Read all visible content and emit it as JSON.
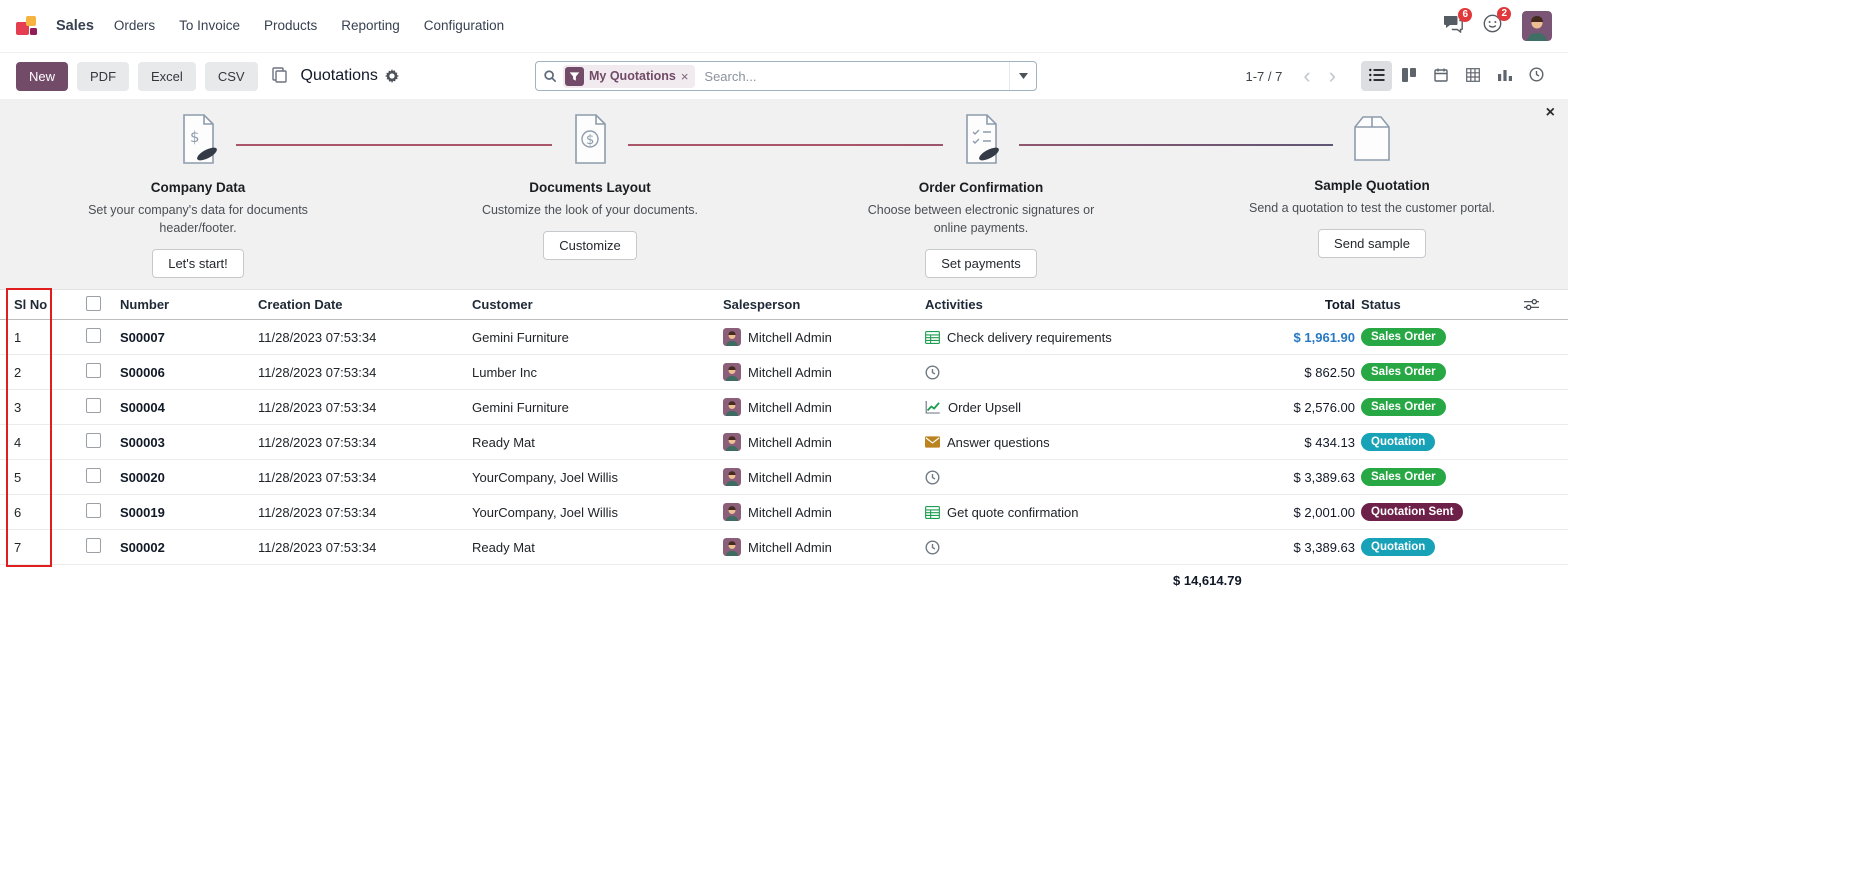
{
  "colors": {
    "accent": "#714B67",
    "status_green": "#28a745",
    "status_teal": "#17a2b8",
    "status_maroon": "#6d2048",
    "annotation_red": "#e01e1e",
    "link_blue": "#2779c4"
  },
  "nav": {
    "app": "Sales",
    "items": [
      "Orders",
      "To Invoice",
      "Products",
      "Reporting",
      "Configuration"
    ],
    "messages_badge": "6",
    "activities_badge": "2"
  },
  "control": {
    "new": "New",
    "pdf": "PDF",
    "excel": "Excel",
    "csv": "CSV",
    "title": "Quotations",
    "pager": "1-7 / 7"
  },
  "search": {
    "facet": "My Quotations",
    "facet_remove": "×",
    "placeholder": "Search..."
  },
  "onboarding": {
    "close": "×",
    "steps": [
      {
        "title": "Company Data",
        "description": "Set your company's data for documents header/footer.",
        "button": "Let's start!"
      },
      {
        "title": "Documents Layout",
        "description": "Customize the look of your documents.",
        "button": "Customize"
      },
      {
        "title": "Order Confirmation",
        "description": "Choose between electronic signatures or online payments.",
        "button": "Set payments"
      },
      {
        "title": "Sample Quotation",
        "description": "Send a quotation to test the customer portal.",
        "button": "Send sample"
      }
    ]
  },
  "table": {
    "headers": {
      "sl": "Sl No",
      "number": "Number",
      "creation_date": "Creation Date",
      "customer": "Customer",
      "salesperson": "Salesperson",
      "activities": "Activities",
      "total": "Total",
      "status": "Status"
    },
    "rows": [
      {
        "sl": "1",
        "number": "S00007",
        "creation_date": "11/28/2023 07:53:34",
        "customer": "Gemini Furniture",
        "salesperson": "Mitchell Admin",
        "activity": "Check delivery requirements",
        "activity_icon": "spreadsheet",
        "total": "$ 1,961.90",
        "total_link": true,
        "status": "Sales Order",
        "status_color": "green"
      },
      {
        "sl": "2",
        "number": "S00006",
        "creation_date": "11/28/2023 07:53:34",
        "customer": "Lumber Inc",
        "salesperson": "Mitchell Admin",
        "activity": "",
        "activity_icon": "clock",
        "total": "$ 862.50",
        "status": "Sales Order",
        "status_color": "green"
      },
      {
        "sl": "3",
        "number": "S00004",
        "creation_date": "11/28/2023 07:53:34",
        "customer": "Gemini Furniture",
        "salesperson": "Mitchell Admin",
        "activity": "Order Upsell",
        "activity_icon": "chart",
        "total": "$ 2,576.00",
        "status": "Sales Order",
        "status_color": "green"
      },
      {
        "sl": "4",
        "number": "S00003",
        "creation_date": "11/28/2023 07:53:34",
        "customer": "Ready Mat",
        "salesperson": "Mitchell Admin",
        "activity": "Answer questions",
        "activity_icon": "envelope",
        "total": "$ 434.13",
        "status": "Quotation",
        "status_color": "teal"
      },
      {
        "sl": "5",
        "number": "S00020",
        "creation_date": "11/28/2023 07:53:34",
        "customer": "YourCompany, Joel Willis",
        "salesperson": "Mitchell Admin",
        "activity": "",
        "activity_icon": "clock",
        "total": "$ 3,389.63",
        "status": "Sales Order",
        "status_color": "green"
      },
      {
        "sl": "6",
        "number": "S00019",
        "creation_date": "11/28/2023 07:53:34",
        "customer": "YourCompany, Joel Willis",
        "salesperson": "Mitchell Admin",
        "activity": "Get quote confirmation",
        "activity_icon": "spreadsheet",
        "total": "$ 2,001.00",
        "status": "Quotation Sent",
        "status_color": "maroon"
      },
      {
        "sl": "7",
        "number": "S00002",
        "creation_date": "11/28/2023 07:53:34",
        "customer": "Ready Mat",
        "salesperson": "Mitchell Admin",
        "activity": "",
        "activity_icon": "clock",
        "total": "$ 3,389.63",
        "status": "Quotation",
        "status_color": "teal"
      }
    ],
    "sum_total": "$ 14,614.79"
  }
}
